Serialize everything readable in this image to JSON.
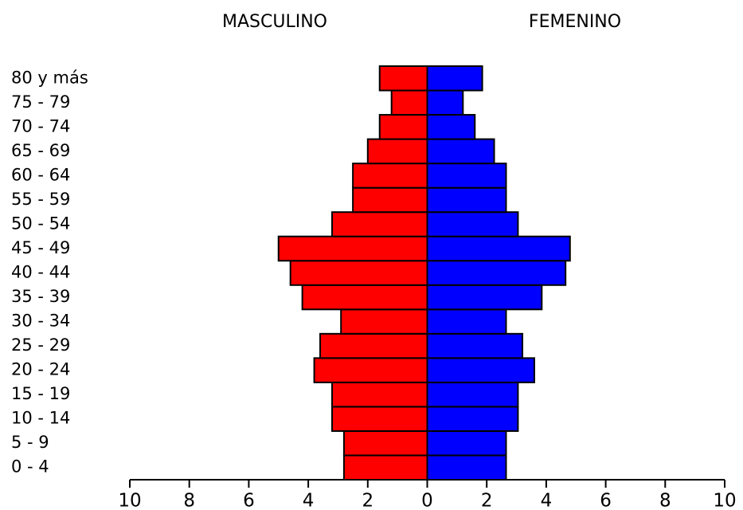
{
  "chart_data": {
    "type": "pyramid",
    "categories": [
      "0 - 4",
      "5 - 9",
      "10 - 14",
      "15 - 19",
      "20 - 24",
      "25 - 29",
      "30 - 34",
      "35 - 39",
      "40 - 44",
      "45 - 49",
      "50 - 54",
      "55 - 59",
      "60 - 64",
      "65 - 69",
      "70 - 74",
      "75 - 79",
      "80 y más"
    ],
    "series": [
      {
        "name": "MASCULINO",
        "color": "#ff0000",
        "values": [
          -2.8,
          -2.8,
          -3.2,
          -3.2,
          -3.8,
          -3.6,
          -2.9,
          -4.2,
          -4.6,
          -5.0,
          -3.2,
          -2.5,
          -2.5,
          -2.0,
          -1.6,
          -1.2,
          -1.6
        ]
      },
      {
        "name": "FEMENINO",
        "color": "#0000ff",
        "values": [
          2.65,
          2.65,
          3.05,
          3.05,
          3.6,
          3.2,
          2.65,
          3.85,
          4.65,
          4.8,
          3.05,
          2.65,
          2.65,
          2.25,
          1.6,
          1.2,
          1.85
        ]
      }
    ],
    "xlim": [
      -10,
      10
    ],
    "xticks": [
      {
        "value": -10,
        "label": "10"
      },
      {
        "value": -8,
        "label": "8"
      },
      {
        "value": -6,
        "label": "6"
      },
      {
        "value": -4,
        "label": "4"
      },
      {
        "value": -2,
        "label": "2"
      },
      0,
      2,
      4,
      6,
      8,
      10
    ]
  }
}
